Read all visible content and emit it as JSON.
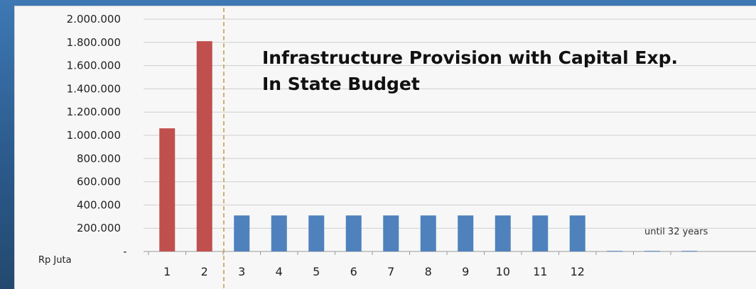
{
  "chart_data": {
    "type": "bar",
    "title_lines": [
      "Infrastructure Provision with Capital Exp.",
      "In State Budget"
    ],
    "ylabel": "Rp Juta",
    "ylim": [
      0,
      2000000
    ],
    "yticks": [
      {
        "value": 2000000,
        "label": "2.000.000"
      },
      {
        "value": 1800000,
        "label": "1.800.000"
      },
      {
        "value": 1600000,
        "label": "1.600.000"
      },
      {
        "value": 1400000,
        "label": "1.400.000"
      },
      {
        "value": 1200000,
        "label": "1.200.000"
      },
      {
        "value": 1000000,
        "label": "1.000.000"
      },
      {
        "value": 800000,
        "label": "800.000"
      },
      {
        "value": 600000,
        "label": "600.000"
      },
      {
        "value": 400000,
        "label": "400.000"
      },
      {
        "value": 200000,
        "label": "200.000"
      },
      {
        "value": 0,
        "label": "-"
      }
    ],
    "categories": [
      "1",
      "2",
      "3",
      "4",
      "5",
      "6",
      "7",
      "8",
      "9",
      "10",
      "11",
      "12",
      "",
      "",
      ""
    ],
    "values": [
      1060000,
      1810000,
      310000,
      310000,
      310000,
      310000,
      310000,
      310000,
      310000,
      310000,
      310000,
      310000,
      5000,
      5000,
      5000
    ],
    "bar_colors": [
      "#c0504d",
      "#c0504d",
      "#4f81bd",
      "#4f81bd",
      "#4f81bd",
      "#4f81bd",
      "#4f81bd",
      "#4f81bd",
      "#4f81bd",
      "#4f81bd",
      "#4f81bd",
      "#4f81bd",
      "#4f81bd",
      "#4f81bd",
      "#4f81bd"
    ],
    "annotation": "until 32 years",
    "divider_color": "#c8964a",
    "grid": true
  }
}
